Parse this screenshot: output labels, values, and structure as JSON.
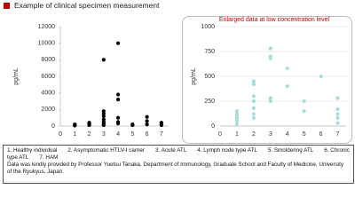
{
  "header": {
    "title": "Example of clinical specimen measurement"
  },
  "chart_data": [
    {
      "type": "scatter",
      "ylabel": "pg/mL",
      "color": "#000000",
      "grid": false,
      "x": [
        1,
        1,
        1,
        2,
        2,
        2,
        2,
        3,
        3,
        3,
        3,
        3,
        3,
        3,
        3,
        4,
        4,
        4,
        4,
        4,
        4,
        5,
        5,
        6,
        6,
        6,
        7,
        7,
        7
      ],
      "y": [
        100,
        200,
        50,
        300,
        200,
        100,
        400,
        8000,
        1800,
        1500,
        1200,
        800,
        500,
        300,
        100,
        10000,
        3800,
        3200,
        1000,
        500,
        300,
        200,
        100,
        1100,
        600,
        200,
        400,
        200,
        100
      ],
      "xlim": [
        0,
        7.5
      ],
      "xticks": [
        0,
        1,
        2,
        3,
        4,
        5,
        6,
        7
      ],
      "ylim": [
        0,
        12000
      ],
      "yticks": [
        0,
        2000,
        4000,
        6000,
        8000,
        10000,
        12000
      ]
    },
    {
      "type": "scatter",
      "ylabel": "pg/mL",
      "color": "#a8dcd8",
      "grid": true,
      "annotation": "Enlarged data at low concentration level",
      "x": [
        1,
        1,
        1,
        1,
        1,
        1,
        2,
        2,
        2,
        2,
        2,
        2,
        2,
        3,
        3,
        3,
        3,
        3,
        4,
        4,
        5,
        5,
        6,
        7,
        7,
        7,
        7,
        7
      ],
      "y": [
        20,
        50,
        80,
        110,
        130,
        150,
        450,
        420,
        300,
        250,
        180,
        120,
        80,
        780,
        700,
        680,
        280,
        250,
        580,
        400,
        250,
        150,
        500,
        280,
        170,
        120,
        80,
        30
      ],
      "xlim": [
        0,
        7.5
      ],
      "xticks": [
        0,
        1,
        2,
        3,
        4,
        5,
        6,
        7
      ],
      "ylim": [
        0,
        1000
      ],
      "yticks": [
        0,
        250,
        500,
        750,
        1000
      ]
    }
  ],
  "footnote": {
    "items": [
      "1. Healthy individual",
      "2. Asymptomatic HTLV-I carrier",
      "3. Acute ATL",
      "4. Lymph node type ATL",
      "5. Smoldering ATL",
      "6. Chronic type ATL",
      "7. HAM"
    ],
    "credit": "Data was kindly provided by Professor Yuetsu Tanaka, Department of Immunology, Graduate School and Faculty of Medicine, University of the Ryukyus, Japan."
  }
}
